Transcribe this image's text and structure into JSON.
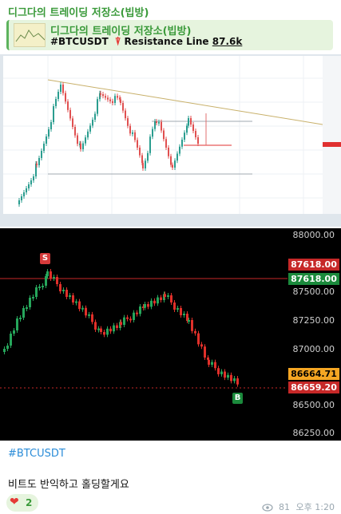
{
  "channel": {
    "name": "디그다의 트레이딩 저장소(빕방)"
  },
  "reply": {
    "title": "디그다의 트레이딩 저장소(빕방)",
    "symbol": "#BTCUSDT",
    "text": "Resistance Line",
    "value": "87.6k"
  },
  "chart": {
    "price_labels": [
      "88000.00",
      "87500.00",
      "87250.00",
      "87000.00",
      "86500.00",
      "86250.00"
    ],
    "resistance_tag": "87618.00",
    "current_tag": "87618.00",
    "price_tag": "86664.71",
    "last_tag": "86659.20",
    "sell_badge": "S",
    "buy_badge": "B",
    "colors": {
      "up": "#26a65b",
      "down": "#e0302a",
      "resistance": "#e03030"
    }
  },
  "message": {
    "hashtag": "#BTCUSDT",
    "text": "비트도 반익하고 홀딩할게요",
    "reaction_count": "2",
    "views": "81",
    "time": "오후 1:20"
  }
}
